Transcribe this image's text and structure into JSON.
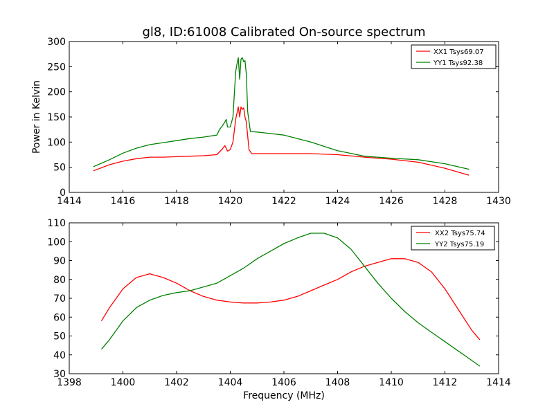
{
  "chart_data": [
    {
      "type": "line",
      "title": "gl8, ID:61008 Calibrated On-source spectrum",
      "xlabel": "",
      "ylabel": "Power in Kelvin",
      "xlim": [
        1414,
        1430
      ],
      "ylim": [
        0,
        300
      ],
      "xticks": [
        "1414",
        "1416",
        "1418",
        "1420",
        "1422",
        "1424",
        "1426",
        "1428",
        "1430"
      ],
      "yticks": [
        "0",
        "50",
        "100",
        "150",
        "200",
        "250",
        "300"
      ],
      "legend_position": "top-right",
      "grid": false,
      "series": [
        {
          "name": "XX1 Tsys69.07",
          "color": "#ff0000",
          "x": [
            1414.9,
            1415.5,
            1416.0,
            1416.5,
            1417.0,
            1417.5,
            1418.0,
            1418.5,
            1419.0,
            1419.5,
            1419.7,
            1419.8,
            1419.9,
            1420.0,
            1420.1,
            1420.2,
            1420.3,
            1420.35,
            1420.4,
            1420.45,
            1420.5,
            1420.55,
            1420.6,
            1420.7,
            1420.8,
            1421.0,
            1422.0,
            1423.0,
            1424.0,
            1425.0,
            1426.0,
            1427.0,
            1428.0,
            1428.9
          ],
          "y": [
            43,
            55,
            62,
            67,
            70,
            70,
            71,
            72,
            73,
            75,
            86,
            93,
            82,
            85,
            100,
            145,
            170,
            150,
            170,
            165,
            168,
            150,
            140,
            85,
            77,
            77,
            77,
            77,
            75,
            70,
            66,
            60,
            48,
            34
          ]
        },
        {
          "name": "YY1 Tsys92.38",
          "color": "#008000",
          "x": [
            1414.9,
            1415.5,
            1416.0,
            1416.5,
            1417.0,
            1417.5,
            1418.0,
            1418.5,
            1419.0,
            1419.5,
            1419.6,
            1419.7,
            1419.8,
            1419.85,
            1419.9,
            1420.0,
            1420.1,
            1420.2,
            1420.25,
            1420.3,
            1420.35,
            1420.4,
            1420.45,
            1420.5,
            1420.55,
            1420.6,
            1420.65,
            1420.75,
            1421.0,
            1422.0,
            1423.0,
            1424.0,
            1425.0,
            1426.0,
            1427.0,
            1428.0,
            1428.9
          ],
          "y": [
            51,
            65,
            78,
            88,
            95,
            99,
            103,
            107,
            110,
            114,
            125,
            132,
            140,
            145,
            130,
            130,
            150,
            240,
            255,
            268,
            225,
            265,
            268,
            260,
            262,
            235,
            160,
            121,
            120,
            114,
            100,
            83,
            72,
            68,
            65,
            57,
            46
          ]
        }
      ]
    },
    {
      "type": "line",
      "title": "",
      "xlabel": "Frequency (MHz)",
      "ylabel": "",
      "xlim": [
        1398,
        1414
      ],
      "ylim": [
        30,
        110
      ],
      "xticks": [
        "1398",
        "1400",
        "1402",
        "1404",
        "1406",
        "1408",
        "1410",
        "1412",
        "1414"
      ],
      "yticks": [
        "30",
        "40",
        "50",
        "60",
        "70",
        "80",
        "90",
        "100",
        "110"
      ],
      "legend_position": "top-right",
      "grid": false,
      "series": [
        {
          "name": "XX2 Tsys75.74",
          "color": "#ff0000",
          "x": [
            1399.2,
            1399.5,
            1400.0,
            1400.5,
            1401.0,
            1401.5,
            1402.0,
            1402.5,
            1403.0,
            1403.5,
            1404.0,
            1404.5,
            1405.0,
            1405.5,
            1406.0,
            1406.5,
            1407.0,
            1407.5,
            1408.0,
            1408.5,
            1409.0,
            1409.5,
            1410.0,
            1410.5,
            1411.0,
            1411.5,
            1412.0,
            1412.5,
            1413.0,
            1413.3
          ],
          "y": [
            58,
            65,
            75,
            81,
            83,
            81,
            78,
            74,
            71,
            69,
            68,
            67.5,
            67.5,
            68,
            69,
            71,
            74,
            77,
            80,
            84,
            87,
            89,
            91,
            91,
            89,
            84,
            75,
            64,
            53,
            48
          ]
        },
        {
          "name": "YY2 Tsys75.19",
          "color": "#008000",
          "x": [
            1399.2,
            1399.5,
            1400.0,
            1400.5,
            1401.0,
            1401.5,
            1402.0,
            1402.5,
            1403.0,
            1403.5,
            1404.0,
            1404.5,
            1405.0,
            1405.5,
            1406.0,
            1406.5,
            1407.0,
            1407.5,
            1408.0,
            1408.5,
            1409.0,
            1409.5,
            1410.0,
            1410.5,
            1411.0,
            1411.5,
            1412.0,
            1412.5,
            1413.0,
            1413.3
          ],
          "y": [
            43,
            48,
            58,
            65,
            69,
            71.5,
            73,
            74,
            76,
            78,
            82,
            86,
            91,
            95,
            99,
            102,
            104.5,
            104.5,
            102,
            96,
            87,
            78,
            70,
            63,
            57,
            52,
            47,
            42,
            37,
            34
          ]
        }
      ]
    }
  ]
}
